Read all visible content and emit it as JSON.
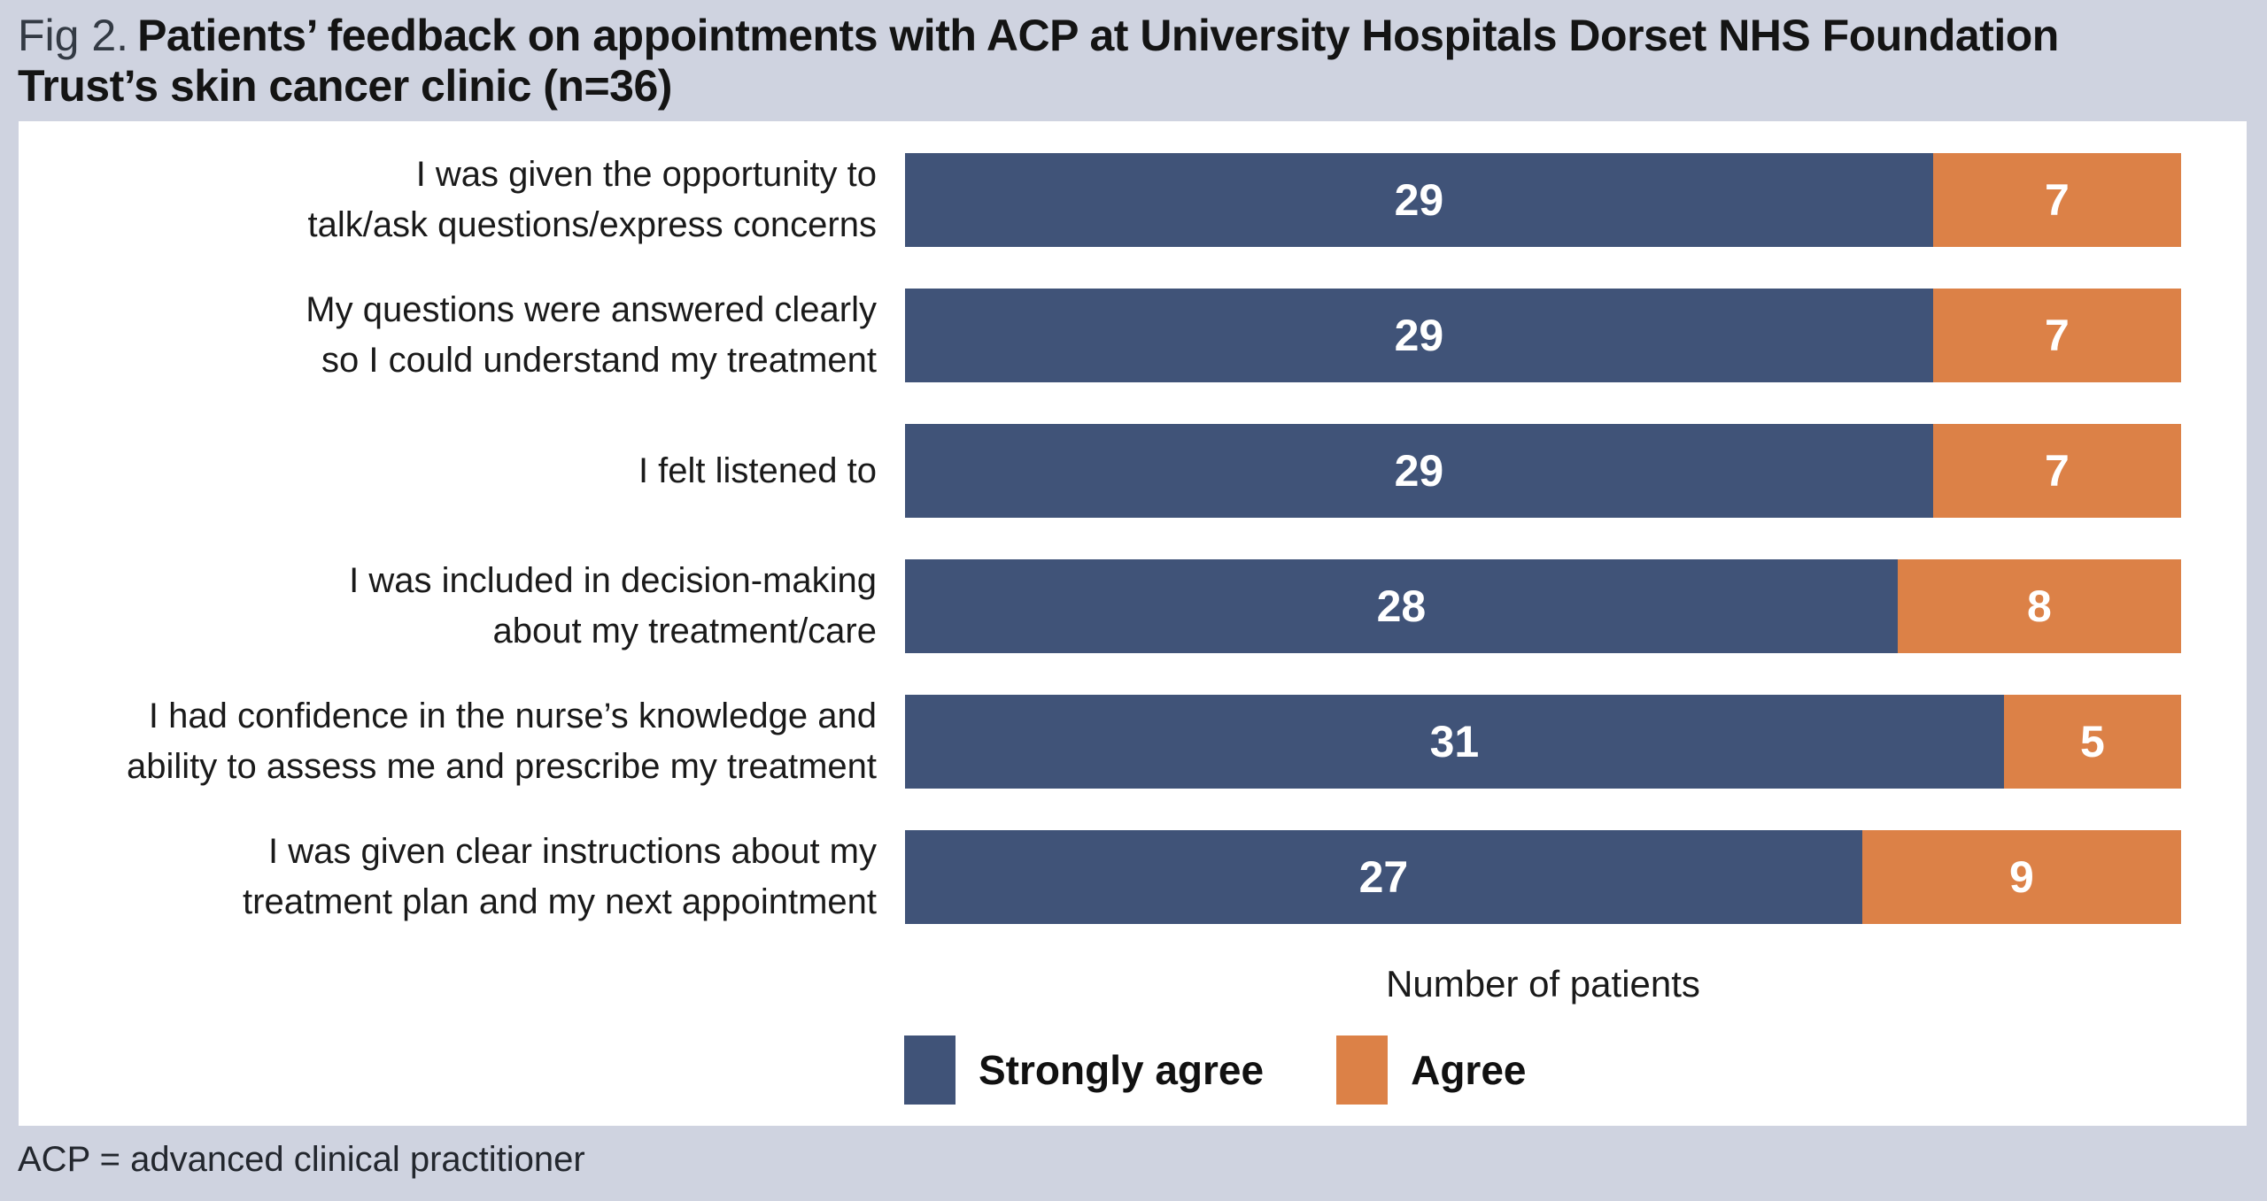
{
  "figure": {
    "label": "Fig 2.",
    "title": "Patients’ feedback on appointments with ACP at University Hospitals Dorset NHS Foundation Trust’s skin cancer clinic (n=36)",
    "footnote": "ACP = advanced clinical practitioner"
  },
  "chart_data": {
    "type": "bar",
    "orientation": "horizontal",
    "stacked": true,
    "grid": false,
    "legend_position": "bottom",
    "xlabel": "Number of patients",
    "xlim": [
      0,
      36
    ],
    "categories": [
      "I was given the  opportunity to\ntalk/ask questions/express concerns",
      "My questions were answered clearly\nso I could understand my treatment",
      "I felt listened to",
      "I was included in decision-making\nabout my treatment/care",
      "I had confidence in the nurse’s knowledge and\nability to assess me and prescribe my treatment",
      "I was given clear instructions about my\ntreatment plan and my next appointment"
    ],
    "series": [
      {
        "name": "Strongly agree",
        "color": "#405378",
        "values": [
          29,
          29,
          29,
          28,
          31,
          27
        ]
      },
      {
        "name": "Agree",
        "color": "#dc8147",
        "values": [
          7,
          7,
          7,
          8,
          5,
          9
        ]
      }
    ],
    "value_label_color": "#ffffff"
  },
  "colors": {
    "background": "#cfd3e0",
    "panel": "#ffffff",
    "strongly_agree": "#405378",
    "agree": "#dc8147"
  }
}
